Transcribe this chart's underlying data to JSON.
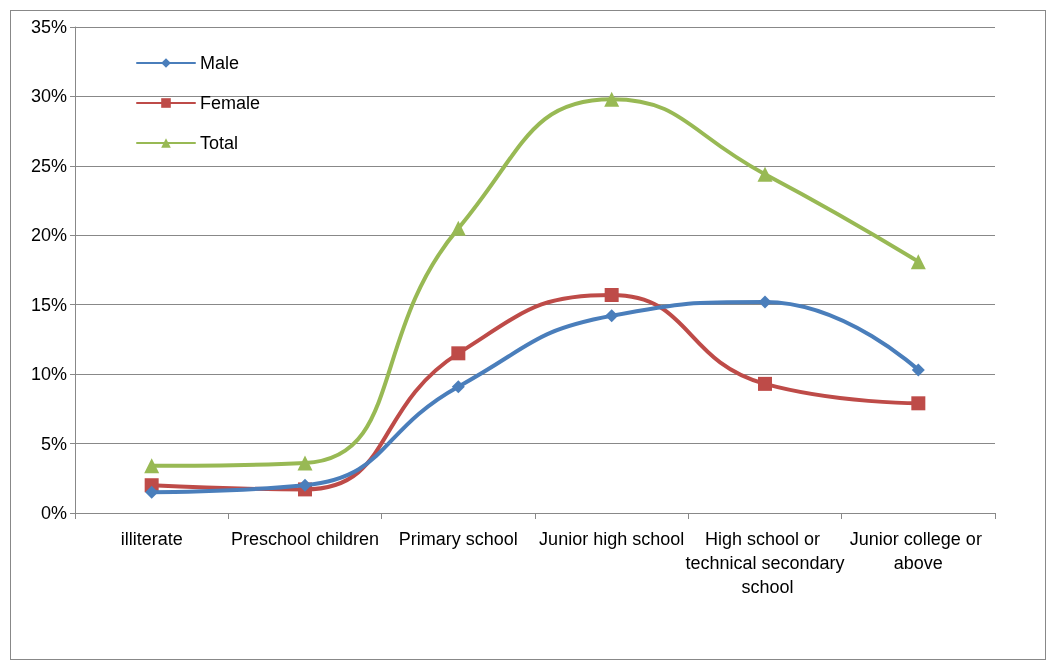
{
  "chart_data": {
    "type": "line",
    "categories": [
      "illiterate",
      "Preschool children",
      "Primary school",
      "Junior high school",
      "High school or technical secondary school",
      "Junior college or above"
    ],
    "series": [
      {
        "name": "Male",
        "color": "#4a7ebb",
        "marker": "diamond",
        "values": [
          1.5,
          2.0,
          9.1,
          14.2,
          15.2,
          10.3
        ]
      },
      {
        "name": "Female",
        "color": "#be4b48",
        "marker": "square",
        "values": [
          2.0,
          1.7,
          11.5,
          15.7,
          9.3,
          7.9
        ]
      },
      {
        "name": "Total",
        "color": "#98b954",
        "marker": "triangle",
        "values": [
          3.4,
          3.6,
          20.5,
          29.8,
          24.4,
          18.1
        ]
      }
    ],
    "ylim": [
      0,
      35
    ],
    "yticks": [
      {
        "value": 0,
        "label": "0%"
      },
      {
        "value": 5,
        "label": "5%"
      },
      {
        "value": 10,
        "label": "10%"
      },
      {
        "value": 15,
        "label": "15%"
      },
      {
        "value": 20,
        "label": "20%"
      },
      {
        "value": 25,
        "label": "25%"
      },
      {
        "value": 30,
        "label": "30%"
      },
      {
        "value": 35,
        "label": "35%"
      }
    ],
    "grid": "y",
    "legend": "top left",
    "line_style": "solid"
  }
}
